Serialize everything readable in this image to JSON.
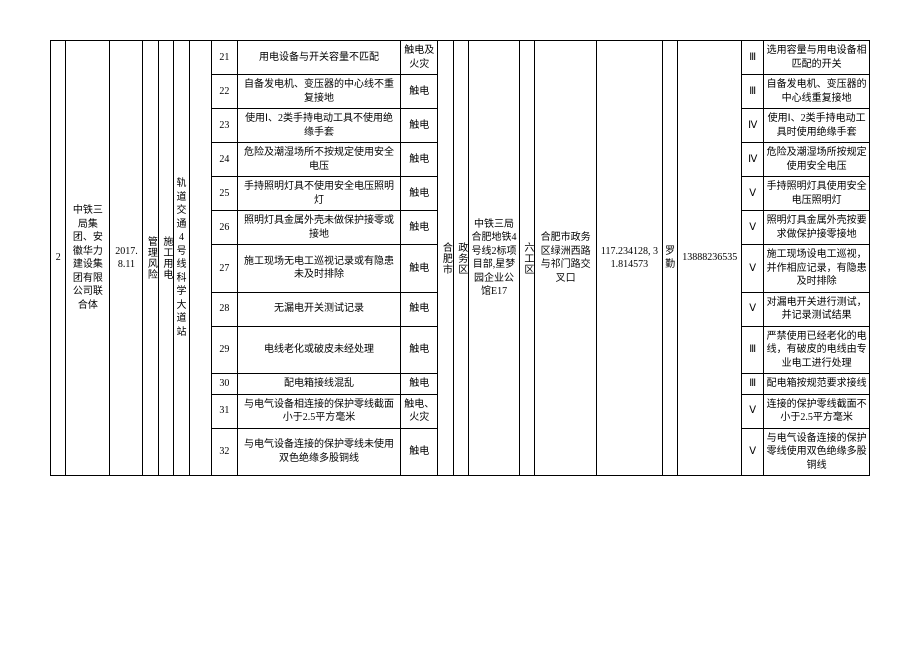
{
  "header": {
    "seq": "2",
    "company": "中铁三局集团、安徽华力建设集团有限公司联合体",
    "date": "2017.8.11",
    "mgmt": "管理风险",
    "risk_source": "施工用电",
    "line": "轨道交通4号线科学大道站"
  },
  "rows": [
    {
      "no": "21",
      "hazard": "用电设备与开关容量不匹配",
      "consequence": "触电及火灾",
      "level": "Ⅲ",
      "measure": "选用容量与用电设备相匹配的开关"
    },
    {
      "no": "22",
      "hazard": "自备发电机、变压器的中心线不重复接地",
      "consequence": "触电",
      "level": "Ⅲ",
      "measure": "自备发电机、变压器的中心线重复接地"
    },
    {
      "no": "23",
      "hazard": "使用Ⅰ、2类手持电动工具不使用绝缘手套",
      "consequence": "触电",
      "level": "Ⅳ",
      "measure": "使用Ⅰ、2类手持电动工具时使用绝缘手套"
    },
    {
      "no": "24",
      "hazard": "危险及潮湿场所不按规定使用安全电压",
      "consequence": "触电",
      "level": "Ⅳ",
      "measure": "危险及潮湿场所按规定使用安全电压"
    },
    {
      "no": "25",
      "hazard": "手持照明灯具不使用安全电压照明灯",
      "consequence": "触电",
      "level": "Ⅴ",
      "measure": "手持照明灯具使用安全电压照明灯"
    },
    {
      "no": "26",
      "hazard": "照明灯具金属外壳未做保护接零或接地",
      "consequence": "触电",
      "level": "Ⅴ",
      "measure": "照明灯具金属外壳按要求做保护接零接地"
    },
    {
      "no": "27",
      "hazard": "施工现场无电工巡视记录或有隐患未及时排除",
      "consequence": "触电",
      "level": "Ⅴ",
      "measure": "施工现场设电工巡视，并作相应记录，有隐患及时排除"
    },
    {
      "no": "28",
      "hazard": "无漏电开关测试记录",
      "consequence": "触电",
      "level": "Ⅴ",
      "measure": "对漏电开关进行测试，并记录测试结果"
    },
    {
      "no": "29",
      "hazard": "电线老化或破皮未经处理",
      "consequence": "触电",
      "level": "Ⅲ",
      "measure": "严禁使用已经老化的电线，有破皮的电线由专业电工进行处理"
    },
    {
      "no": "30",
      "hazard": "配电箱接线混乱",
      "consequence": "触电",
      "level": "Ⅲ",
      "measure": "配电箱按规范要求接线"
    },
    {
      "no": "31",
      "hazard": "与电气设备相连接的保护零线截面小于2.5平方毫米",
      "consequence": "触电、火灾",
      "level": "Ⅴ",
      "measure": "连接的保护零线截面不小于2.5平方毫米"
    },
    {
      "no": "32",
      "hazard": "与电气设备连接的保护零线未使用双色绝缘多股铜线",
      "consequence": "触电",
      "level": "Ⅴ",
      "measure": "与电气设备连接的保护零线使用双色绝缘多股铜线"
    }
  ],
  "right": {
    "city": "合肥市",
    "district": "政务区",
    "project": "中铁三局合肥地铁4号线2标项目部,星梦园企业公馆E17",
    "zone": "六工区",
    "location": "合肥市政务区绿洲西路与祁门路交叉口",
    "coords": "117.234128, 31.814573",
    "person": "罗勤",
    "phone": "13888236535"
  },
  "style": {
    "background_color": "#ffffff",
    "border_color": "#000000",
    "font_family": "SimSun",
    "base_fontsize": 10,
    "row_count": 12,
    "col_count": 20
  }
}
